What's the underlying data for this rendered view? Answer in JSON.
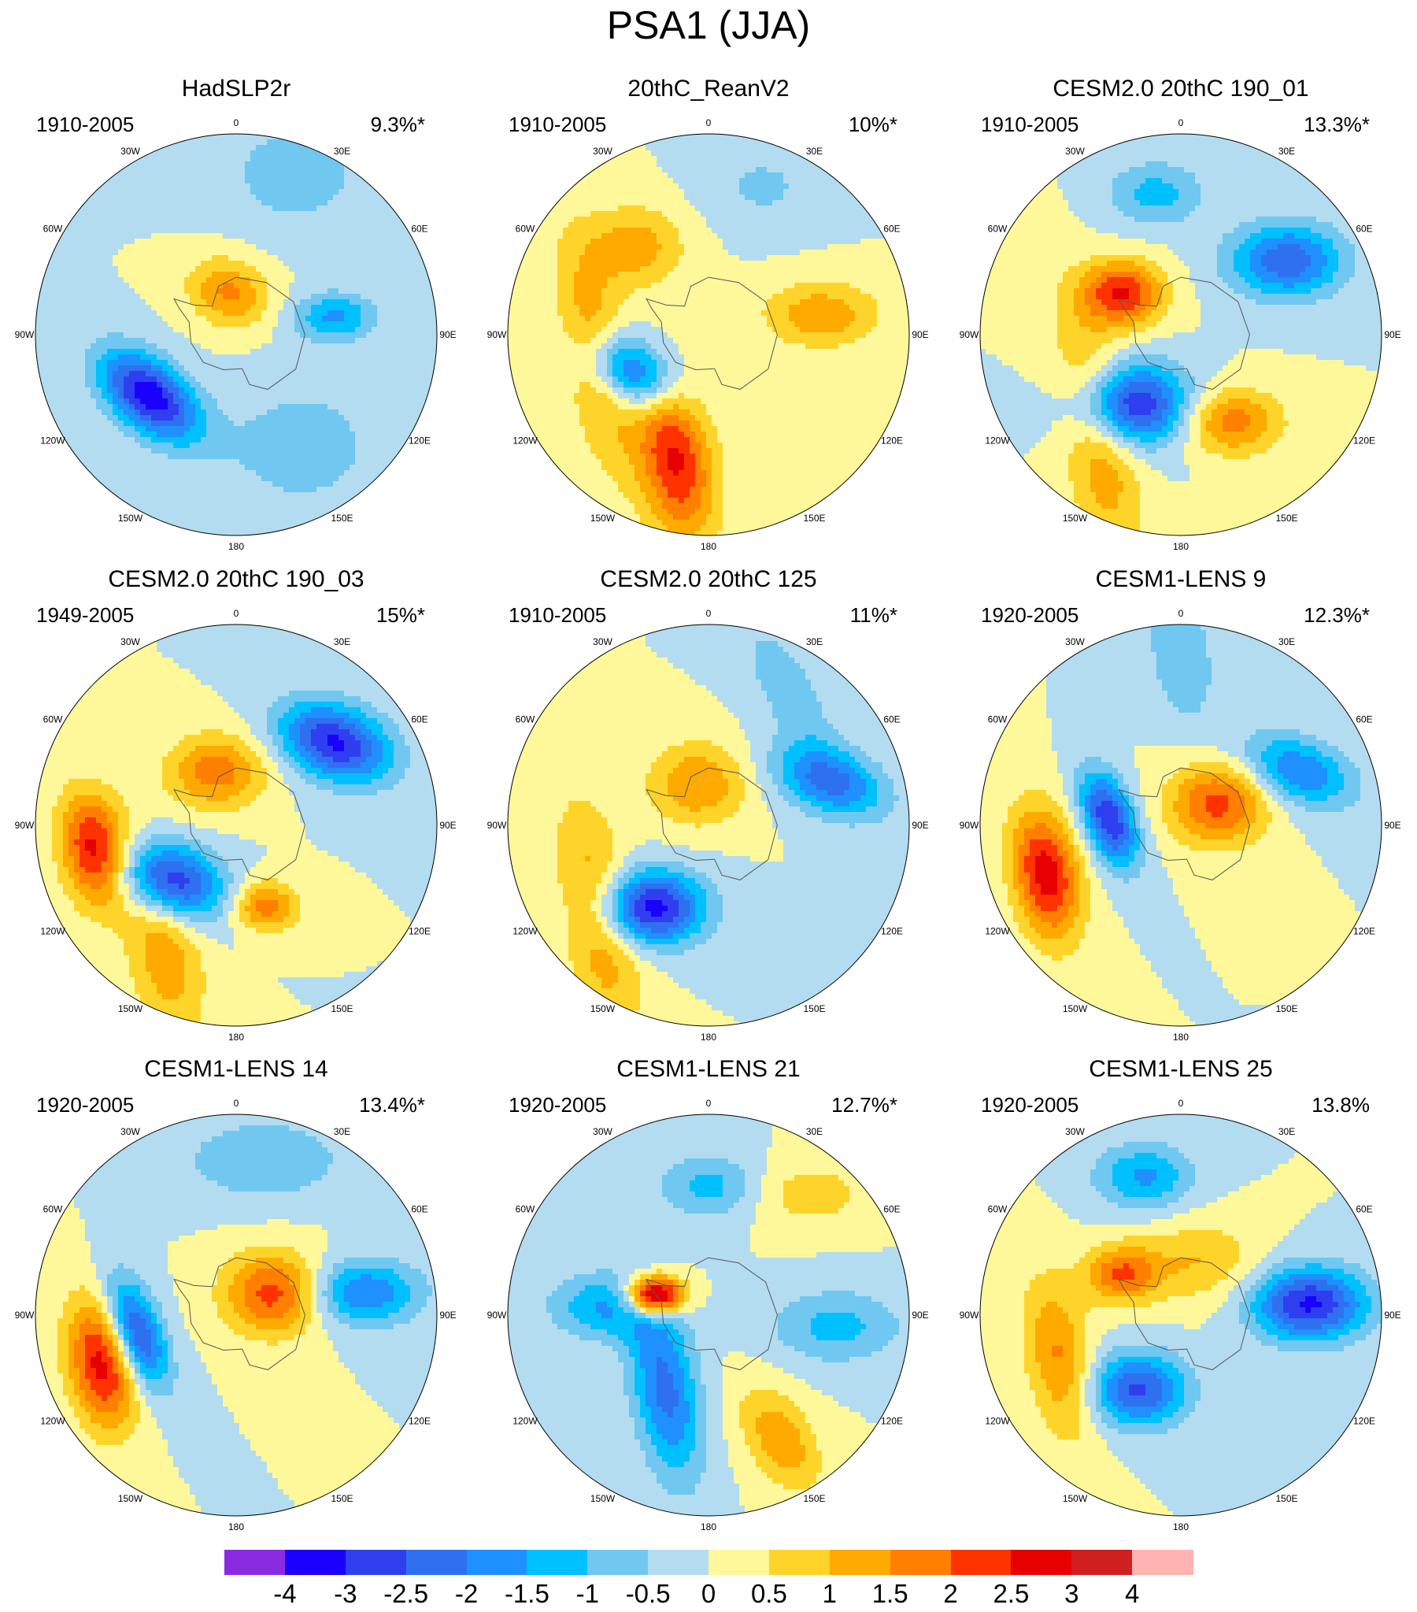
{
  "title": "PSA1 (JJA)",
  "panels": [
    {
      "name": "HadSLP2r",
      "period": "1910-2005",
      "variance": "9.3%*",
      "blobs": [
        {
          "lat": -53,
          "lon": -125,
          "amp": -3.4,
          "ra": 14,
          "rb": 8,
          "rot": 40
        },
        {
          "lat": -75,
          "lon": -10,
          "amp": 1.6,
          "ra": 10,
          "rb": 8,
          "rot": 20
        },
        {
          "lat": -55,
          "lon": 80,
          "amp": -1.6,
          "ra": 10,
          "rb": 6,
          "rot": 0
        },
        {
          "lat": -30,
          "lon": 20,
          "amp": -0.8,
          "ra": 18,
          "rb": 14,
          "rot": 0
        },
        {
          "lat": -45,
          "lon": 150,
          "amp": -0.8,
          "ra": 20,
          "rb": 16,
          "rot": 0
        }
      ]
    },
    {
      "name": "20thC_ReanV2",
      "period": "1910-2005",
      "variance": "10%*",
      "blobs": [
        {
          "lat": -60,
          "lon": -115,
          "amp": -2.6,
          "ra": 12,
          "rb": 8,
          "rot": 30
        },
        {
          "lat": -45,
          "lon": -165,
          "amp": 2.6,
          "ra": 20,
          "rb": 9,
          "rot": 80
        },
        {
          "lat": -50,
          "lon": -100,
          "amp": 1.4,
          "ra": 28,
          "rb": 8,
          "rot": 80
        },
        {
          "lat": -50,
          "lon": -40,
          "amp": 1.3,
          "ra": 12,
          "rb": 10,
          "rot": 0
        },
        {
          "lat": -50,
          "lon": 80,
          "amp": 1.4,
          "ra": 14,
          "rb": 8,
          "rot": 0
        },
        {
          "lat": -35,
          "lon": 20,
          "amp": -0.6,
          "ra": 14,
          "rb": 10,
          "rot": 0
        }
      ]
    },
    {
      "name": "CESM2.0 20thC 190_01",
      "period": "1910-2005",
      "variance": "13.3%*",
      "blobs": [
        {
          "lat": -60,
          "lon": -145,
          "amp": -3.2,
          "ra": 14,
          "rb": 10,
          "rot": 0
        },
        {
          "lat": -65,
          "lon": -55,
          "amp": 2.5,
          "ra": 10,
          "rb": 8,
          "rot": 0
        },
        {
          "lat": -45,
          "lon": 55,
          "amp": -2.4,
          "ra": 14,
          "rb": 9,
          "rot": 0
        },
        {
          "lat": -40,
          "lon": -10,
          "amp": -1.2,
          "ra": 12,
          "rb": 8,
          "rot": 0
        },
        {
          "lat": -45,
          "lon": -140,
          "amp": 1.5,
          "ra": 30,
          "rb": 9,
          "rot": 80
        },
        {
          "lat": -55,
          "lon": 150,
          "amp": 1.8,
          "ra": 12,
          "rb": 8,
          "rot": 0
        }
      ]
    },
    {
      "name": "CESM2.0 20thC 190_03",
      "period": "1949-2005",
      "variance": "15%*",
      "blobs": [
        {
          "lat": -60,
          "lon": -130,
          "amp": -3.2,
          "ra": 13,
          "rb": 9,
          "rot": 20
        },
        {
          "lat": -40,
          "lon": -100,
          "amp": 2.8,
          "ra": 14,
          "rb": 8,
          "rot": 80
        },
        {
          "lat": -70,
          "lon": -20,
          "amp": 1.8,
          "ra": 12,
          "rb": 9,
          "rot": 0
        },
        {
          "lat": -45,
          "lon": 50,
          "amp": -3.1,
          "ra": 14,
          "rb": 9,
          "rot": 20
        },
        {
          "lat": -60,
          "lon": 160,
          "amp": 1.8,
          "ra": 8,
          "rb": 6,
          "rot": 0
        },
        {
          "lat": -40,
          "lon": -150,
          "amp": 1.4,
          "ra": 22,
          "rb": 9,
          "rot": 80
        }
      ]
    },
    {
      "name": "CESM2.0 20thC 125",
      "period": "1910-2005",
      "variance": "11%*",
      "blobs": [
        {
          "lat": -55,
          "lon": -145,
          "amp": -3.3,
          "ra": 13,
          "rb": 9,
          "rot": 0
        },
        {
          "lat": -75,
          "lon": -15,
          "amp": 1.5,
          "ra": 12,
          "rb": 10,
          "rot": 0
        },
        {
          "lat": -45,
          "lon": 70,
          "amp": -2.2,
          "ra": 14,
          "rb": 8,
          "rot": 20
        },
        {
          "lat": -40,
          "lon": -130,
          "amp": 1.5,
          "ra": 28,
          "rb": 9,
          "rot": 80
        },
        {
          "lat": -35,
          "lon": 30,
          "amp": -0.8,
          "ra": 20,
          "rb": 8,
          "rot": 60
        }
      ]
    },
    {
      "name": "CESM1-LENS 9",
      "period": "1920-2005",
      "variance": "12.3%*",
      "blobs": [
        {
          "lat": -65,
          "lon": -85,
          "amp": -3.0,
          "ra": 12,
          "rb": 6,
          "rot": 70
        },
        {
          "lat": -75,
          "lon": 60,
          "amp": 2.2,
          "ra": 12,
          "rb": 10,
          "rot": 0
        },
        {
          "lat": -40,
          "lon": -110,
          "amp": 2.8,
          "ra": 16,
          "rb": 8,
          "rot": 80
        },
        {
          "lat": -45,
          "lon": 65,
          "amp": -2.0,
          "ra": 14,
          "rb": 8,
          "rot": 20
        },
        {
          "lat": -30,
          "lon": 0,
          "amp": -1.0,
          "ra": 18,
          "rb": 8,
          "rot": 80
        }
      ]
    },
    {
      "name": "CESM1-LENS 14",
      "period": "1920-2005",
      "variance": "13.4%*",
      "blobs": [
        {
          "lat": -55,
          "lon": -100,
          "amp": -2.8,
          "ra": 14,
          "rb": 6,
          "rot": 70
        },
        {
          "lat": -75,
          "lon": 60,
          "amp": 2.3,
          "ra": 12,
          "rb": 10,
          "rot": 0
        },
        {
          "lat": -40,
          "lon": -110,
          "amp": 2.7,
          "ra": 16,
          "rb": 8,
          "rot": 80
        },
        {
          "lat": -45,
          "lon": 80,
          "amp": -2.0,
          "ra": 14,
          "rb": 8,
          "rot": 0
        },
        {
          "lat": -35,
          "lon": 10,
          "amp": -1.0,
          "ra": 20,
          "rb": 10,
          "rot": 0
        }
      ]
    },
    {
      "name": "CESM1-LENS 21",
      "period": "1920-2005",
      "variance": "12.7%*",
      "blobs": [
        {
          "lat": -70,
          "lon": -70,
          "amp": 4.4,
          "ra": 7,
          "rb": 5,
          "rot": 0
        },
        {
          "lat": -60,
          "lon": -150,
          "amp": -2.2,
          "ra": 22,
          "rb": 8,
          "rot": 80
        },
        {
          "lat": -55,
          "lon": -85,
          "amp": -1.6,
          "ra": 14,
          "rb": 8,
          "rot": 0
        },
        {
          "lat": -45,
          "lon": 95,
          "amp": -1.2,
          "ra": 16,
          "rb": 9,
          "rot": 0
        },
        {
          "lat": -40,
          "lon": 150,
          "amp": 1.4,
          "ra": 14,
          "rb": 8,
          "rot": 60
        },
        {
          "lat": -45,
          "lon": 0,
          "amp": -1.2,
          "ra": 12,
          "rb": 8,
          "rot": 0
        },
        {
          "lat": -35,
          "lon": 40,
          "amp": 0.8,
          "ra": 14,
          "rb": 8,
          "rot": 0
        }
      ]
    },
    {
      "name": "CESM1-LENS 25",
      "period": "1920-2005",
      "variance": "13.8%",
      "blobs": [
        {
          "lat": -60,
          "lon": -150,
          "amp": -2.6,
          "ra": 12,
          "rb": 9,
          "rot": 0
        },
        {
          "lat": -45,
          "lon": 85,
          "amp": -3.1,
          "ra": 14,
          "rb": 9,
          "rot": 0
        },
        {
          "lat": -40,
          "lon": -15,
          "amp": -1.6,
          "ra": 12,
          "rb": 8,
          "rot": 0
        },
        {
          "lat": -65,
          "lon": -55,
          "amp": 2.0,
          "ra": 9,
          "rb": 7,
          "rot": 0
        },
        {
          "lat": -45,
          "lon": -110,
          "amp": 1.6,
          "ra": 20,
          "rb": 8,
          "rot": 80
        },
        {
          "lat": -70,
          "lon": 20,
          "amp": 1.0,
          "ra": 14,
          "rb": 10,
          "rot": 0
        }
      ]
    }
  ],
  "lon_labels": [
    "0",
    "30E",
    "60E",
    "90E",
    "120E",
    "150E",
    "180",
    "150W",
    "120W",
    "90W",
    "60W",
    "30W"
  ],
  "colorbar": {
    "levels": [
      "-4",
      "-3",
      "-2.5",
      "-2",
      "-1.5",
      "-1",
      "-0.5",
      "0",
      "0.5",
      "1",
      "1.5",
      "2",
      "2.5",
      "3",
      "4"
    ],
    "colors": [
      "#8a2be2",
      "#1a00ff",
      "#2f3ff0",
      "#2f70f0",
      "#1e90ff",
      "#00c0ff",
      "#70c8f0",
      "#b4dcf0",
      "#fff89a",
      "#ffd42a",
      "#ffaa00",
      "#ff7f00",
      "#ff3300",
      "#e60000",
      "#d01f1f",
      "#ffb3b3"
    ]
  }
}
